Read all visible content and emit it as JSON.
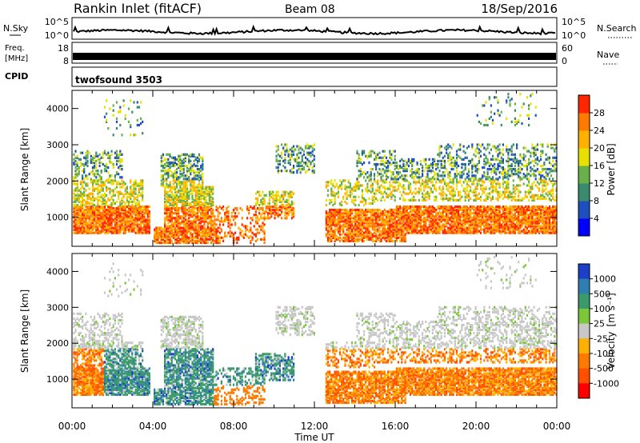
{
  "header": {
    "title": "Rankin Inlet (fitACF)",
    "beam": "Beam 08",
    "date": "18/Sep/2016"
  },
  "strips": {
    "nsky_label": "N.Sky",
    "nsky_ticks": [
      "10^5",
      "10^0"
    ],
    "nsearch_label": "N.Search",
    "freq_label_line1": "Freq.",
    "freq_label_line2": "[MHz]",
    "freq_ticks": [
      "18",
      "8"
    ],
    "nave_label": "Nave",
    "nave_ticks": [
      "60",
      "0"
    ],
    "cpid_label": "CPID",
    "cpid_value": "twofsound 3503"
  },
  "chart_data": [
    {
      "type": "heatmap",
      "title": "",
      "quantity": "Power",
      "xlabel": "",
      "ylabel": "Slant Range [km]",
      "x_ticks": [
        "00:00",
        "04:00",
        "08:00",
        "12:00",
        "16:00",
        "20:00",
        "00:00"
      ],
      "y_ticks": [
        1000,
        2000,
        3000,
        4000
      ],
      "ylim": [
        200,
        4500
      ],
      "xlim_hours": [
        0,
        24
      ],
      "colorbar": {
        "label": "Power [dB]",
        "ticks": [
          "4",
          "8",
          "12",
          "16",
          "20",
          "24",
          "28"
        ],
        "colors": [
          "#0000ff",
          "#1f4fbf",
          "#3a8a6e",
          "#6ab04a",
          "#e8e000",
          "#ffb000",
          "#ff7a00",
          "#ff2600"
        ]
      }
    },
    {
      "type": "heatmap",
      "title": "",
      "quantity": "Velocity",
      "xlabel": "Time UT",
      "ylabel": "Slant Range [km]",
      "x_ticks": [
        "00:00",
        "04:00",
        "08:00",
        "12:00",
        "16:00",
        "20:00",
        "00:00"
      ],
      "y_ticks": [
        1000,
        2000,
        3000,
        4000
      ],
      "ylim": [
        200,
        4500
      ],
      "xlim_hours": [
        0,
        24
      ],
      "colorbar": {
        "label_main": "Velocity",
        "label_unit": "[m s⁻¹]",
        "ticks": [
          "1000",
          "500",
          "100",
          "25",
          "-25",
          "-100",
          "-500",
          "-1000"
        ],
        "colors": [
          "#1c3fc8",
          "#2e7eb0",
          "#3a9a6a",
          "#7ac83a",
          "#c8c8c8",
          "#ffb000",
          "#ff7a00",
          "#ff5000",
          "#ff0000"
        ]
      }
    }
  ]
}
